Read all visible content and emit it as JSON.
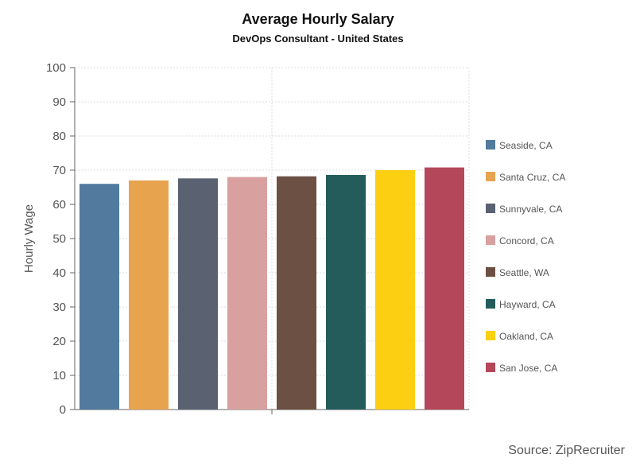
{
  "chart_data": {
    "type": "bar",
    "title": "Average Hourly Salary",
    "subtitle": "DevOps Consultant - United States",
    "xlabel": "",
    "ylabel": "Hourly Wage",
    "ylim": [
      0,
      100
    ],
    "yticks": [
      0,
      10,
      20,
      30,
      40,
      50,
      60,
      70,
      80,
      90,
      100
    ],
    "grid": true,
    "legend_position": "right",
    "categories": [
      "Seaside, CA",
      "Santa Cruz, CA",
      "Sunnyvale, CA",
      "Concord, CA",
      "Seattle, WA",
      "Hayward, CA",
      "Oakland, CA",
      "San Jose, CA"
    ],
    "values": [
      66,
      67,
      67.6,
      68,
      68.2,
      68.6,
      70,
      70.8
    ],
    "colors": [
      "#527a9e",
      "#e8a34f",
      "#5a6170",
      "#d9a0a0",
      "#6b5043",
      "#235c5b",
      "#fdcf12",
      "#b5475a"
    ],
    "source": "Source: ZipRecruiter"
  }
}
